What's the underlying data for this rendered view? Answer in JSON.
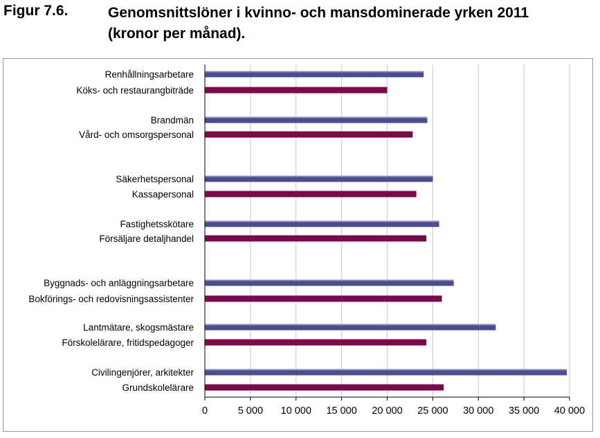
{
  "figure": {
    "label": "Figur 7.6.",
    "title_line1": "Genomsnittslöner i kvinno- och mansdominerade yrken 2011",
    "title_line2": "(kronor per månad)."
  },
  "chart_data": {
    "type": "bar",
    "orientation": "horizontal",
    "colors": {
      "men_dominated": "#4b4b8f",
      "women_dominated": "#7a0a4a",
      "grid": "#c8c8c8",
      "axis": "#000000"
    },
    "xlim": [
      0,
      40000
    ],
    "xticks": [
      0,
      5000,
      10000,
      15000,
      20000,
      25000,
      30000,
      35000,
      40000
    ],
    "xtick_labels": [
      "0",
      "5 000",
      "10 000",
      "15 000",
      "20 000",
      "25 000",
      "30 000",
      "35 000",
      "40 000"
    ],
    "grid": true,
    "pairs": [
      {
        "men_label": "Renhållningsarbetare",
        "men_value": 24000,
        "women_label": "Köks- och restaurangbiträde",
        "women_value": 20000
      },
      {
        "men_label": "Brandmän",
        "men_value": 24400,
        "women_label": "Vård- och omsorgspersonal",
        "women_value": 22800
      },
      {
        "men_label": "Säkerhetspersonal",
        "men_value": 25000,
        "women_label": "Kassapersonal",
        "women_value": 23200
      },
      {
        "men_label": "Fastighetsskötare",
        "men_value": 25700,
        "women_label": "Försäljare detaljhandel",
        "women_value": 24300
      },
      {
        "men_label": "Byggnads- och anläggningsarbetare",
        "men_value": 27300,
        "women_label": "Bokförings- och redovisningsassistenter",
        "women_value": 26000
      },
      {
        "men_label": "Lantmätare, skogsmästare",
        "men_value": 31900,
        "women_label": "Förskolelärare, fritidspedagoger",
        "women_value": 24300
      },
      {
        "men_label": "Civilingenjörer, arkitekter",
        "men_value": 39700,
        "women_label": "Grundskolelärare",
        "women_value": 26200
      }
    ]
  }
}
